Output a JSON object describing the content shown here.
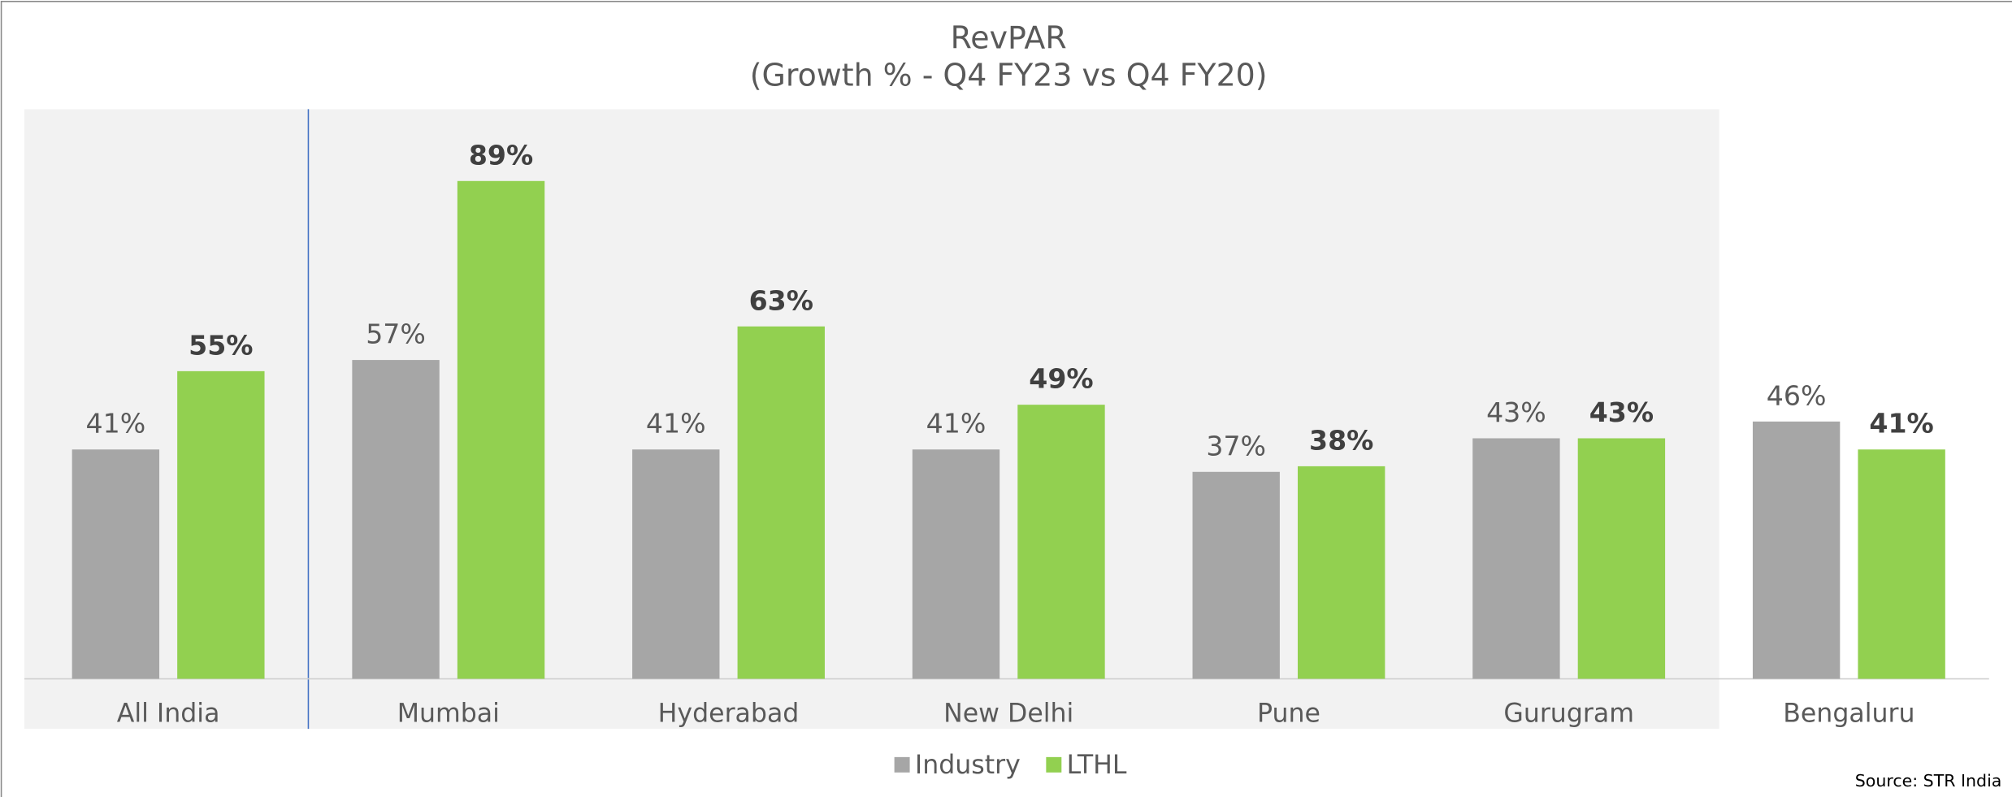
{
  "chart_data": {
    "type": "bar",
    "title": "RevPAR",
    "subtitle": "(Growth % - Q4 FY23 vs Q4 FY20)",
    "categories": [
      "All India",
      "Mumbai",
      "Hyderabad",
      "New Delhi",
      "Pune",
      "Gurugram",
      "Bengaluru"
    ],
    "series": [
      {
        "name": "Industry",
        "color": "#a6a6a6",
        "values": [
          41,
          57,
          41,
          41,
          37,
          43,
          46
        ],
        "value_labels": [
          "41%",
          "57%",
          "41%",
          "41%",
          "37%",
          "43%",
          "46%"
        ]
      },
      {
        "name": "LTHL",
        "color": "#92d050",
        "values": [
          55,
          89,
          63,
          49,
          38,
          43,
          41
        ],
        "value_labels": [
          "55%",
          "89%",
          "63%",
          "49%",
          "38%",
          "43%",
          "41%"
        ]
      }
    ],
    "ylim": [
      0,
      100
    ],
    "legend": "bottom",
    "source": "Source: STR India"
  }
}
